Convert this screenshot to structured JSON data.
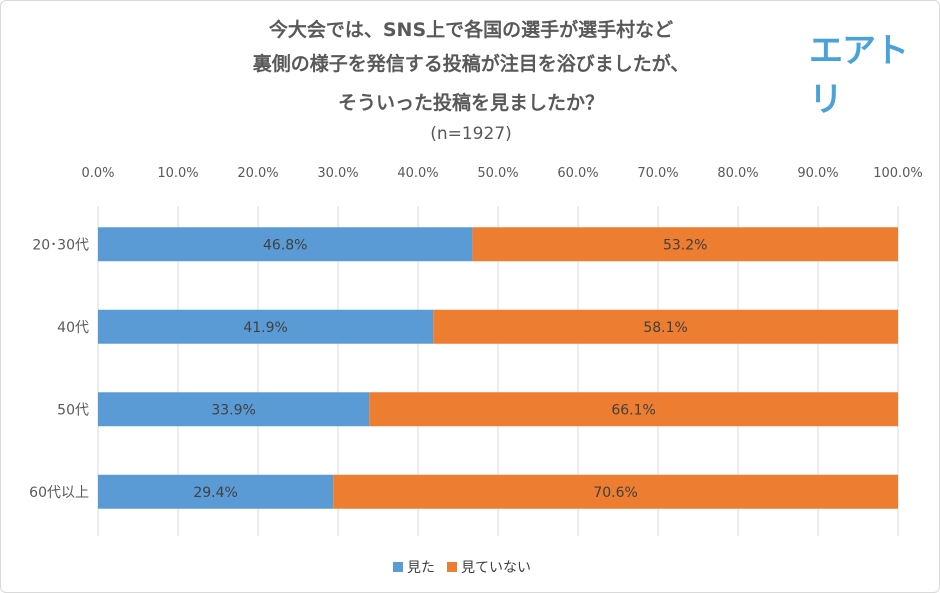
{
  "logo": "エアトリ",
  "chart_data": {
    "type": "bar",
    "stacked": true,
    "orientation": "horizontal",
    "title": [
      "今大会では、SNS上で各国の選手が選手村など",
      "裏側の様子を発信する投稿が注目を浴びましたが、",
      "そういった投稿を見ましたか？"
    ],
    "subtitle": "(n=1927)",
    "categories": [
      "20･30代",
      "40代",
      "50代",
      "60代以上"
    ],
    "series": [
      {
        "name": "見た",
        "color": "#5b9bd5",
        "values": [
          46.8,
          41.9,
          33.9,
          29.4
        ],
        "labels": [
          "46.8%",
          "41.9%",
          "33.9%",
          "29.4%"
        ]
      },
      {
        "name": "見ていない",
        "color": "#ed7d31",
        "values": [
          53.2,
          58.1,
          66.1,
          70.6
        ],
        "labels": [
          "53.2%",
          "58.1%",
          "66.1%",
          "70.6%"
        ]
      }
    ],
    "xlim": [
      0,
      100
    ],
    "xticks": [
      "0.0%",
      "10.0%",
      "20.0%",
      "30.0%",
      "40.0%",
      "50.0%",
      "60.0%",
      "70.0%",
      "80.0%",
      "90.0%",
      "100.0%"
    ],
    "grid": true,
    "legend": "bottom"
  }
}
